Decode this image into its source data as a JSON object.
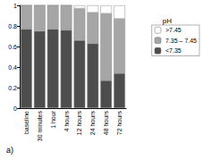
{
  "chart_data": {
    "type": "bar",
    "stacked": true,
    "categories": [
      "baseline",
      "30 minutes",
      "1 hour",
      "4 hours",
      "12 hours",
      "24 hours",
      "48 hours",
      "72 hours"
    ],
    "series": [
      {
        "name": "<7.35",
        "color": "#4d4d4d",
        "values": [
          0.77,
          0.75,
          0.77,
          0.76,
          0.66,
          0.63,
          0.27,
          0.34
        ]
      },
      {
        "name": "7.35 – 7.45",
        "color": "#a6a6a6",
        "values": [
          0.23,
          0.25,
          0.23,
          0.24,
          0.31,
          0.3,
          0.65,
          0.53
        ]
      },
      {
        "name": ">7.45",
        "color": "#ffffff",
        "values": [
          0,
          0,
          0,
          0,
          0.03,
          0.07,
          0.08,
          0.13
        ]
      }
    ],
    "ylim": [
      0,
      1
    ],
    "yticks": [
      0,
      0.2,
      0.4,
      0.6,
      0.8,
      1
    ],
    "legend_title": "pH",
    "legend": "right",
    "annotation": "a)",
    "grid": false
  }
}
